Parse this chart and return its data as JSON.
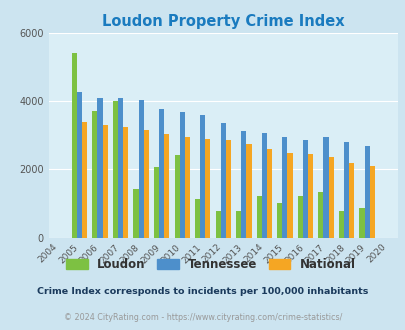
{
  "title": "Loudon Property Crime Index",
  "years": [
    "2004",
    "2005",
    "2006",
    "2007",
    "2008",
    "2009",
    "2010",
    "2011",
    "2012",
    "2013",
    "2014",
    "2015",
    "2016",
    "2017",
    "2018",
    "2019",
    "2020"
  ],
  "loudon": [
    0,
    5400,
    3700,
    4000,
    1430,
    2070,
    2420,
    1130,
    790,
    790,
    1230,
    1010,
    1230,
    1340,
    790,
    870,
    0
  ],
  "tennessee": [
    0,
    4270,
    4080,
    4100,
    4040,
    3780,
    3680,
    3600,
    3360,
    3140,
    3060,
    2960,
    2870,
    2960,
    2810,
    2680,
    0
  ],
  "national": [
    0,
    3380,
    3290,
    3250,
    3160,
    3050,
    2960,
    2900,
    2870,
    2740,
    2600,
    2490,
    2450,
    2360,
    2200,
    2100,
    0
  ],
  "loudon_color": "#7dc142",
  "tennessee_color": "#4d8fcb",
  "national_color": "#f5a623",
  "fig_bg_color": "#cce4f0",
  "plot_bg_color": "#daeef6",
  "ylim": [
    0,
    6000
  ],
  "yticks": [
    0,
    2000,
    4000,
    6000
  ],
  "title_color": "#1a7bbf",
  "legend_labels": [
    "Loudon",
    "Tennessee",
    "National"
  ],
  "legend_label_color": "#333333",
  "footnote1": "Crime Index corresponds to incidents per 100,000 inhabitants",
  "footnote2": "© 2024 CityRating.com - https://www.cityrating.com/crime-statistics/",
  "footnote1_color": "#1a3a5c",
  "footnote2_color": "#999999",
  "bar_width": 0.25,
  "figsize": [
    4.06,
    3.3
  ],
  "dpi": 100
}
